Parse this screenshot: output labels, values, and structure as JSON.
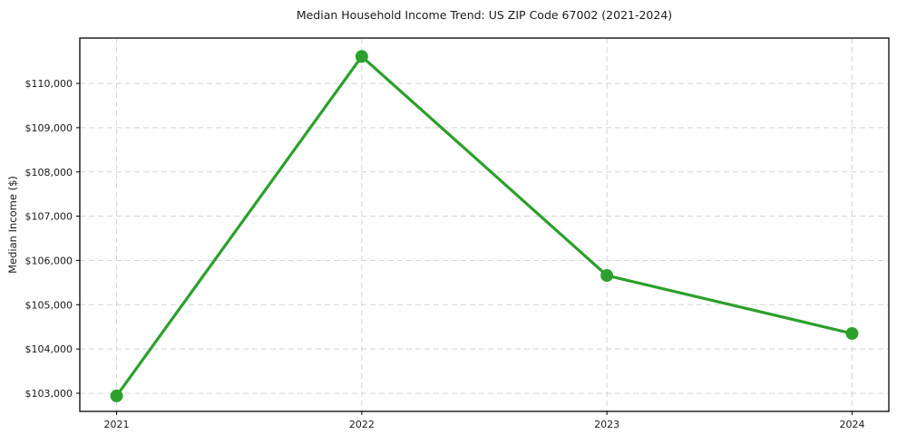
{
  "chart_data": {
    "type": "line",
    "title": "Median Household Income Trend: US ZIP Code 67002 (2021-2024)",
    "xlabel": "",
    "ylabel": "Median Income ($)",
    "categories": [
      "2021",
      "2022",
      "2023",
      "2024"
    ],
    "series": [
      {
        "name": "Median Household Income",
        "values": [
          102940,
          110610,
          105660,
          104350
        ],
        "color": "#2ca02c",
        "marker": "circle",
        "marker_radius": 7,
        "line_width": 3.2
      }
    ],
    "y_ticks": {
      "values": [
        103000,
        104000,
        105000,
        106000,
        107000,
        108000,
        109000,
        110000
      ],
      "labels": [
        "$103,000",
        "$104,000",
        "$105,000",
        "$106,000",
        "$107,000",
        "$108,000",
        "$109,000",
        "$110,000"
      ]
    },
    "ylim": [
      102590,
      111025
    ],
    "grid": "dashed-both-axes",
    "legend": "none",
    "colors": {
      "accent": "#2ca02c",
      "grid": "#d4d4d4",
      "frame": "#000000",
      "text": "#1a1a1a",
      "background": "#ffffff"
    }
  }
}
